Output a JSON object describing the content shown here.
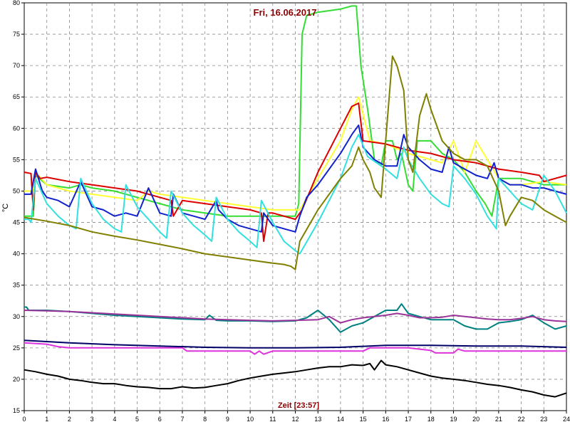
{
  "chart_data": {
    "type": "line",
    "title": "Fri, 16.06.2017",
    "xlabel": "Zeit [23:57]",
    "ylabel": "°C",
    "xlim": [
      0,
      24
    ],
    "ylim": [
      15,
      80
    ],
    "x_ticks": [
      0,
      1,
      2,
      3,
      4,
      5,
      6,
      7,
      8,
      9,
      10,
      11,
      12,
      13,
      14,
      15,
      16,
      17,
      18,
      19,
      20,
      21,
      22,
      23,
      24
    ],
    "y_ticks": [
      15,
      20,
      25,
      30,
      35,
      40,
      45,
      50,
      55,
      60,
      65,
      70,
      75,
      80
    ],
    "grid": true,
    "series": [
      {
        "color": "#33dd33",
        "x": [
          0,
          0.4,
          0.5,
          1,
          2,
          2.5,
          3,
          4,
          5,
          6,
          7,
          8,
          9,
          10,
          11,
          12,
          12.15,
          12.3,
          12.5,
          13,
          14,
          14.5,
          14.7,
          14.9,
          15.2,
          15.5,
          15.8,
          16,
          16.3,
          16.5,
          16.7,
          17,
          17.2,
          17.4,
          17.6,
          18,
          18.5,
          19,
          19.5,
          20,
          20.4,
          20.7,
          21,
          22,
          23,
          24
        ],
        "y": [
          46,
          46,
          52.5,
          51,
          50.5,
          51,
          50.5,
          50,
          49,
          48,
          47,
          46.5,
          46,
          46,
          46,
          46,
          48,
          75,
          78,
          78.5,
          79,
          79.5,
          79.5,
          70,
          63,
          55,
          54,
          58,
          58,
          55,
          56,
          51,
          50,
          58,
          58,
          58,
          56,
          55,
          53,
          50,
          48,
          46,
          52,
          52,
          51,
          51
        ]
      },
      {
        "color": "#ffff33",
        "x": [
          0,
          0.4,
          0.5,
          1,
          2,
          3,
          4,
          5,
          5.5,
          6,
          7,
          8,
          9,
          10,
          11,
          12,
          12.2,
          13,
          14,
          14.5,
          14.8,
          15.3,
          16,
          17,
          18,
          18.5,
          19,
          19.5,
          20,
          21,
          21.5,
          22,
          23,
          24
        ],
        "y": [
          50,
          50,
          53,
          51,
          50,
          49.5,
          49,
          48.5,
          50,
          49.5,
          49,
          48.5,
          48,
          47.5,
          47,
          47,
          47,
          52,
          58,
          63,
          65,
          58,
          57.5,
          56,
          55,
          54.5,
          58,
          53,
          58,
          52,
          51,
          51,
          51.5,
          51
        ]
      },
      {
        "color": "#dd0000",
        "x": [
          0,
          0.3,
          0.4,
          0.5,
          0.7,
          1,
          2,
          3,
          4,
          5,
          6,
          6.5,
          6.6,
          7,
          8,
          9,
          10,
          10.5,
          10.6,
          10.8,
          11,
          12,
          12.3,
          13,
          14,
          14.5,
          14.8,
          15,
          16,
          17,
          18,
          18.5,
          19,
          20,
          21,
          22,
          22.8,
          23,
          24
        ],
        "y": [
          53,
          52.8,
          47,
          53,
          52,
          52.2,
          51.5,
          51,
          50.5,
          50,
          49,
          48.5,
          46,
          48.5,
          48,
          47.5,
          47,
          46.5,
          42,
          46.5,
          46.5,
          45.5,
          47,
          53,
          60,
          63.5,
          64,
          58,
          57.5,
          56.5,
          56,
          55.5,
          55,
          54.5,
          53.5,
          53,
          52.5,
          51.5,
          52.5
        ]
      },
      {
        "color": "#1122cc",
        "x": [
          0,
          0.3,
          0.5,
          0.8,
          1,
          1.5,
          2,
          2.5,
          3,
          3.5,
          4,
          4.5,
          5,
          5.5,
          6,
          6.5,
          6.6,
          7,
          7.5,
          8,
          8.5,
          8.6,
          9,
          9.5,
          10,
          10.5,
          10.6,
          11,
          11.5,
          12,
          12.2,
          12.5,
          13,
          14,
          14.5,
          14.8,
          15,
          15.5,
          16,
          16.5,
          16.8,
          17,
          17.5,
          18,
          18.5,
          18.8,
          19,
          19.5,
          20,
          20.5,
          20.8,
          21,
          21.5,
          22,
          22.5,
          23,
          23.5,
          24
        ],
        "y": [
          49.5,
          49.5,
          53.5,
          50,
          49,
          48.5,
          47.5,
          51.5,
          47.5,
          47,
          46,
          46.5,
          46,
          50.5,
          46.5,
          46,
          49.5,
          46.5,
          46,
          45.5,
          48.5,
          47,
          45.5,
          44.5,
          44,
          43.5,
          46.5,
          44.5,
          44,
          43.5,
          46,
          49,
          51,
          56,
          59,
          60.5,
          57,
          55,
          54,
          54,
          59,
          57,
          55,
          53.5,
          53,
          57,
          54.5,
          53.5,
          52.5,
          52,
          54.5,
          52,
          51,
          51,
          50.5,
          50.5,
          50,
          49.5
        ]
      },
      {
        "color": "#33e0e0",
        "x": [
          0,
          0.2,
          0.3,
          0.5,
          1,
          1.5,
          2,
          2.3,
          2.5,
          3,
          3.5,
          4,
          4.3,
          4.5,
          5,
          5.5,
          6,
          6.3,
          6.5,
          7,
          7.5,
          8,
          8.3,
          8.5,
          9,
          9.5,
          10,
          10.3,
          10.5,
          11,
          11.5,
          12,
          12.2,
          13,
          14,
          14.5,
          14.8,
          15.2,
          16,
          16.5,
          16.8,
          17,
          17.5,
          18,
          18.5,
          18.8,
          19,
          19.5,
          20,
          20.5,
          20.9,
          21,
          21.5,
          22,
          22.5,
          23,
          23.5,
          24
        ],
        "y": [
          45.5,
          45.5,
          45,
          52,
          48,
          46,
          44.5,
          44,
          52,
          48,
          45.5,
          44,
          43.5,
          51,
          47.5,
          45.5,
          43.5,
          42.5,
          50,
          46.5,
          44.5,
          43,
          42,
          49,
          45.5,
          43.5,
          42,
          41,
          48.5,
          45,
          42,
          40.5,
          40,
          45,
          52,
          57,
          59,
          55.5,
          53.5,
          52,
          57,
          55,
          52,
          49.5,
          48,
          47.5,
          54,
          52,
          49.5,
          46,
          44,
          52,
          50,
          48,
          47,
          52.5,
          50,
          46.5
        ]
      },
      {
        "color": "#808000",
        "x": [
          0,
          1,
          2,
          3,
          4,
          5,
          6,
          7,
          8,
          9,
          10,
          11,
          11.5,
          11.8,
          12,
          12.2,
          13,
          14,
          14.5,
          14.8,
          15,
          15.3,
          15.5,
          15.8,
          16,
          16.3,
          16.5,
          16.8,
          17,
          17.2,
          17.5,
          17.8,
          18,
          18.5,
          19,
          19.5,
          20,
          20.5,
          21,
          21.3,
          21.5,
          22,
          22.5,
          23,
          23.5,
          24
        ],
        "y": [
          45.8,
          45.2,
          44.5,
          43.5,
          42.8,
          42.2,
          41.5,
          40.8,
          40,
          39.5,
          39,
          38.5,
          38.3,
          38,
          37.5,
          42,
          47,
          52,
          54,
          57,
          55,
          53,
          50.5,
          49,
          58,
          71.5,
          70,
          66,
          55,
          53,
          62,
          65.5,
          63,
          58,
          56,
          55,
          55,
          54,
          50,
          44.5,
          46,
          49,
          48.5,
          47,
          46,
          45
        ]
      },
      {
        "color": "#008080",
        "x": [
          0,
          0.1,
          0.2,
          1,
          2,
          3,
          4,
          5,
          6,
          7,
          8,
          8.2,
          8.5,
          9,
          10,
          11,
          12,
          12.5,
          13,
          13.5,
          14,
          14.5,
          15,
          15.5,
          16,
          16.5,
          16.7,
          17,
          17.5,
          18,
          18.5,
          19,
          19.5,
          20,
          20.5,
          21,
          21.5,
          22,
          22.5,
          23,
          23.5,
          24
        ],
        "y": [
          31.5,
          31.5,
          31,
          31,
          30.8,
          30.5,
          30.2,
          30,
          29.8,
          29.6,
          29.5,
          30.2,
          29.4,
          29.3,
          29.3,
          29.2,
          29.3,
          29.8,
          31,
          29.5,
          27.5,
          28.5,
          29,
          30,
          31,
          31,
          32,
          30.5,
          30,
          29.5,
          29.5,
          29.5,
          28.5,
          28,
          28,
          29,
          29.2,
          29.5,
          30.2,
          29,
          28,
          28.5
        ]
      },
      {
        "color": "#993399",
        "x": [
          0,
          1,
          2,
          3,
          4,
          5,
          6,
          7,
          8,
          9,
          10,
          11,
          12,
          13,
          13.5,
          14,
          14.5,
          15,
          15.5,
          16,
          16.5,
          17,
          17.5,
          18,
          18.5,
          19,
          19.5,
          20,
          20.5,
          21,
          21.5,
          22,
          22.5,
          23,
          23.5,
          24
        ],
        "y": [
          31,
          30.9,
          30.8,
          30.6,
          30.4,
          30.2,
          30,
          29.8,
          29.6,
          29.5,
          29.4,
          29.3,
          29.4,
          29.5,
          30,
          29,
          29.5,
          29.8,
          30,
          30.2,
          30.5,
          30.2,
          29.8,
          29.8,
          29.9,
          30.2,
          30,
          29.8,
          29.6,
          29.5,
          29.5,
          29.7,
          30,
          29.5,
          29.3,
          29.2
        ]
      },
      {
        "color": "#dd33dd",
        "x": [
          0,
          1,
          1.5,
          2,
          3,
          4,
          5,
          6,
          7,
          7.2,
          7.4,
          8,
          9,
          10,
          10.2,
          10.4,
          10.6,
          11,
          12,
          13,
          14,
          15,
          15.3,
          16,
          17,
          17.5,
          18,
          18.2,
          18.5,
          19,
          19.2,
          19.5,
          20,
          21,
          22,
          23,
          24
        ],
        "y": [
          25.8,
          25.6,
          25.2,
          25,
          25,
          25,
          25,
          25,
          25,
          24.5,
          24.5,
          24.5,
          24.5,
          24.5,
          24,
          24.5,
          24,
          24.5,
          24.5,
          24.5,
          24.5,
          24.5,
          25,
          25,
          25,
          24.8,
          24.6,
          24.2,
          24.2,
          24.2,
          24.8,
          24.5,
          24.5,
          24.5,
          24.5,
          24.5,
          24.5
        ]
      },
      {
        "color": "#000066",
        "x": [
          0,
          2,
          4,
          6,
          8,
          10,
          12,
          14,
          16,
          18,
          20,
          22,
          24
        ],
        "y": [
          26.2,
          25.8,
          25.5,
          25.3,
          25.1,
          25,
          25,
          25.1,
          25.4,
          25.4,
          25.3,
          25.3,
          25.1
        ]
      },
      {
        "color": "#000000",
        "x": [
          0,
          0.5,
          1,
          1.5,
          2,
          2.5,
          3,
          3.5,
          4,
          4.5,
          5,
          5.5,
          6,
          6.5,
          7,
          7.5,
          8,
          8.5,
          9,
          9.5,
          10,
          10.5,
          11,
          11.5,
          12,
          12.5,
          13,
          13.5,
          14,
          14.5,
          15,
          15.3,
          15.5,
          15.8,
          16,
          16.5,
          17,
          17.5,
          18,
          18.5,
          19,
          19.5,
          20,
          20.5,
          21,
          21.5,
          22,
          22.5,
          23,
          23.5,
          24
        ],
        "y": [
          21.5,
          21.2,
          20.8,
          20.5,
          20,
          19.8,
          19.5,
          19.3,
          19.3,
          19,
          18.8,
          18.7,
          18.5,
          18.5,
          18.8,
          18.6,
          18.7,
          19,
          19.3,
          19.8,
          20.2,
          20.5,
          20.8,
          21,
          21.2,
          21.5,
          21.8,
          22,
          22,
          22.3,
          22.2,
          22.5,
          21.5,
          23,
          22.3,
          22,
          21.5,
          21,
          20.5,
          20.2,
          20,
          19.8,
          19.5,
          19.2,
          19,
          18.7,
          18.3,
          18,
          17.5,
          17.2,
          17.8
        ]
      }
    ]
  }
}
